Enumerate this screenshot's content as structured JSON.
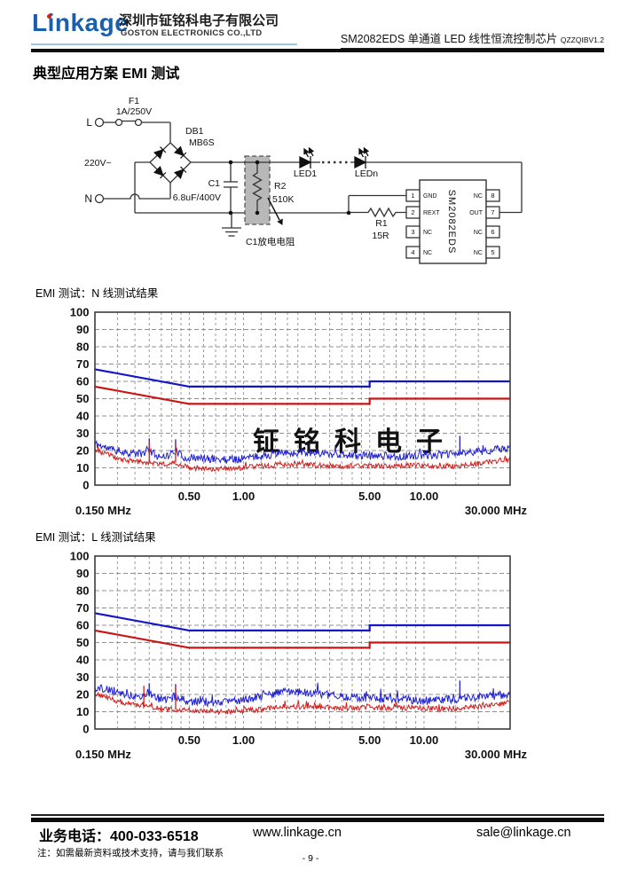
{
  "header": {
    "logo": "Linkage",
    "company_cn": "深圳市钲铭科电子有限公司",
    "company_en": "GOSTON ELECTRONICS CO.,LTD",
    "doc_title": "SM2082EDS 单通道 LED 线性恒流控制芯片",
    "doc_version": "QZZQIBV1.2"
  },
  "section_title": "典型应用方案 EMI 测试",
  "circuit": {
    "labels": {
      "live": "L",
      "neutral": "N",
      "mains": "220V~",
      "fuse_ref": "F1",
      "fuse_val": "1A/250V",
      "bridge_ref": "DB1",
      "bridge_val": "MB6S",
      "cap_ref": "C1",
      "cap_val": "6.8uF/400V",
      "r2_ref": "R2",
      "r2_val": "510K",
      "r2_note": "C1放电电阻",
      "led1": "LED1",
      "ledn": "LEDn",
      "r1_ref": "R1",
      "r1_val": "15R"
    },
    "chip": {
      "name": "SM2082EDS",
      "left_pins": [
        {
          "num": "1",
          "label": "GND"
        },
        {
          "num": "2",
          "label": "REXT"
        },
        {
          "num": "3",
          "label": "NC"
        },
        {
          "num": "4",
          "label": "NC"
        }
      ],
      "right_pins": [
        {
          "num": "8",
          "label": "NC"
        },
        {
          "num": "7",
          "label": "OUT"
        },
        {
          "num": "6",
          "label": "NC"
        },
        {
          "num": "5",
          "label": "NC"
        }
      ]
    }
  },
  "chart_data": [
    {
      "type": "line",
      "title": "EMI 测试：N 线测试结果",
      "x_scale": "log",
      "xlim": [
        0.15,
        30
      ],
      "ylim": [
        0,
        100
      ],
      "grid": true,
      "watermark": "钲铭科电子",
      "x_corner_left": "0.150 MHz",
      "x_corner_right": "30.000 MHz",
      "y_tick_labels": [
        "0",
        "10",
        "20",
        "30",
        "40",
        "50",
        "60",
        "70",
        "80",
        "90",
        "100"
      ],
      "x_ticks": [
        {
          "f": 0.5,
          "label": "0.50"
        },
        {
          "f": 1,
          "label": "1.00"
        },
        {
          "f": 5,
          "label": "5.00"
        },
        {
          "f": 10,
          "label": "10.00"
        }
      ],
      "grid_freqs": [
        0.2,
        0.25,
        0.3,
        0.35,
        0.4,
        0.45,
        0.5,
        0.6,
        0.7,
        0.8,
        0.9,
        1,
        1.25,
        1.5,
        1.75,
        2,
        2.5,
        3,
        3.5,
        4,
        4.5,
        5,
        6,
        7,
        8,
        9,
        10,
        15,
        20
      ],
      "series": [
        {
          "id": "limit-qp-blue",
          "kind": "limit",
          "color": "#1414c8",
          "width": 2.2,
          "points": [
            [
              0.15,
              67
            ],
            [
              0.5,
              57
            ],
            [
              5,
              57
            ],
            [
              5,
              60
            ],
            [
              30,
              60
            ]
          ]
        },
        {
          "id": "limit-av-red",
          "kind": "limit",
          "color": "#cc1414",
          "width": 2.2,
          "points": [
            [
              0.15,
              57
            ],
            [
              0.5,
              47
            ],
            [
              5,
              47
            ],
            [
              5,
              50
            ],
            [
              30,
              50
            ]
          ]
        },
        {
          "id": "trace-qp-blue",
          "kind": "noise",
          "color": "#1f1fd0",
          "amp": 2.3,
          "seed": 11,
          "points": [
            [
              0.15,
              24
            ],
            [
              0.18,
              21
            ],
            [
              0.22,
              19
            ],
            [
              0.27,
              18
            ],
            [
              0.3,
              20
            ],
            [
              0.33,
              17
            ],
            [
              0.38,
              17
            ],
            [
              0.42,
              20
            ],
            [
              0.46,
              16
            ],
            [
              0.55,
              15.5
            ],
            [
              0.7,
              15
            ],
            [
              0.9,
              15
            ],
            [
              1.1,
              16
            ],
            [
              1.4,
              17.5
            ],
            [
              1.8,
              18.5
            ],
            [
              2.3,
              19
            ],
            [
              2.8,
              18.5
            ],
            [
              3.5,
              17.5
            ],
            [
              4.5,
              17
            ],
            [
              6,
              17
            ],
            [
              8,
              16.5
            ],
            [
              10,
              17.5
            ],
            [
              13,
              17.5
            ],
            [
              16,
              18.5
            ],
            [
              20,
              19.5
            ],
            [
              25,
              20.5
            ],
            [
              30,
              21
            ]
          ],
          "spikes": [
            [
              0.3,
              27
            ],
            [
              0.42,
              26.5
            ],
            [
              15.8,
              28.5
            ]
          ]
        },
        {
          "id": "trace-av-red",
          "kind": "noise",
          "color": "#d01f1f",
          "amp": 1.5,
          "seed": 23,
          "points": [
            [
              0.15,
              20
            ],
            [
              0.17,
              18.5
            ],
            [
              0.2,
              15.5
            ],
            [
              0.25,
              13.5
            ],
            [
              0.3,
              13
            ],
            [
              0.36,
              12
            ],
            [
              0.42,
              13
            ],
            [
              0.5,
              10
            ],
            [
              0.65,
              9.5
            ],
            [
              0.85,
              9.5
            ],
            [
              1.1,
              10.5
            ],
            [
              1.5,
              11.5
            ],
            [
              2,
              12
            ],
            [
              2.6,
              11.5
            ],
            [
              3.5,
              11
            ],
            [
              5,
              11
            ],
            [
              7,
              11
            ],
            [
              9,
              11.5
            ],
            [
              12,
              11
            ],
            [
              15,
              11
            ],
            [
              19,
              12
            ],
            [
              24,
              13.5
            ],
            [
              30,
              15
            ]
          ],
          "spikes": [
            [
              0.3,
              25
            ],
            [
              0.42,
              24.5
            ]
          ]
        }
      ]
    },
    {
      "type": "line",
      "title": "EMI 测试：L 线测试结果",
      "x_scale": "log",
      "xlim": [
        0.15,
        30
      ],
      "ylim": [
        0,
        100
      ],
      "grid": true,
      "watermark": "",
      "x_corner_left": "0.150 MHz",
      "x_corner_right": "30.000 MHz",
      "y_tick_labels": [
        "0",
        "10",
        "20",
        "30",
        "40",
        "50",
        "60",
        "70",
        "80",
        "90",
        "100"
      ],
      "x_ticks": [
        {
          "f": 0.5,
          "label": "0.50"
        },
        {
          "f": 1,
          "label": "1.00"
        },
        {
          "f": 5,
          "label": "5.00"
        },
        {
          "f": 10,
          "label": "10.00"
        }
      ],
      "grid_freqs": [
        0.2,
        0.25,
        0.3,
        0.35,
        0.4,
        0.45,
        0.5,
        0.6,
        0.7,
        0.8,
        0.9,
        1,
        1.25,
        1.5,
        1.75,
        2,
        2.5,
        3,
        3.5,
        4,
        4.5,
        5,
        6,
        7,
        8,
        9,
        10,
        15,
        20
      ],
      "series": [
        {
          "id": "limit-qp-blue",
          "kind": "limit",
          "color": "#1414c8",
          "width": 2.2,
          "points": [
            [
              0.15,
              67
            ],
            [
              0.5,
              57
            ],
            [
              5,
              57
            ],
            [
              5,
              60
            ],
            [
              30,
              60
            ]
          ]
        },
        {
          "id": "limit-av-red",
          "kind": "limit",
          "color": "#cc1414",
          "width": 2.2,
          "points": [
            [
              0.15,
              57
            ],
            [
              0.5,
              47
            ],
            [
              5,
              47
            ],
            [
              5,
              50
            ],
            [
              30,
              50
            ]
          ]
        },
        {
          "id": "trace-qp-blue",
          "kind": "noise",
          "color": "#1f1fd0",
          "amp": 2.4,
          "seed": 37,
          "points": [
            [
              0.15,
              24
            ],
            [
              0.19,
              22
            ],
            [
              0.24,
              19
            ],
            [
              0.3,
              20
            ],
            [
              0.36,
              16.5
            ],
            [
              0.42,
              19
            ],
            [
              0.5,
              16
            ],
            [
              0.65,
              15.5
            ],
            [
              0.85,
              15.5
            ],
            [
              1.05,
              17
            ],
            [
              1.3,
              19.5
            ],
            [
              1.6,
              21
            ],
            [
              2,
              21.5
            ],
            [
              2.5,
              21
            ],
            [
              3,
              19.5
            ],
            [
              3.8,
              18.5
            ],
            [
              5,
              17.5
            ],
            [
              6.5,
              17.5
            ],
            [
              8,
              17
            ],
            [
              10,
              16.5
            ],
            [
              12.5,
              17
            ],
            [
              15,
              17.5
            ],
            [
              18,
              18
            ],
            [
              22,
              19
            ],
            [
              26,
              19.5
            ],
            [
              30,
              20
            ]
          ],
          "spikes": [
            [
              0.3,
              26.5
            ],
            [
              0.42,
              26
            ],
            [
              15.8,
              28
            ]
          ]
        },
        {
          "id": "trace-av-red",
          "kind": "noise",
          "color": "#d01f1f",
          "amp": 1.5,
          "seed": 51,
          "points": [
            [
              0.15,
              20
            ],
            [
              0.17,
              19
            ],
            [
              0.2,
              16
            ],
            [
              0.25,
              14
            ],
            [
              0.3,
              13
            ],
            [
              0.36,
              11.5
            ],
            [
              0.45,
              11
            ],
            [
              0.55,
              10.5
            ],
            [
              0.75,
              10
            ],
            [
              1,
              10.5
            ],
            [
              1.3,
              11.5
            ],
            [
              1.7,
              13
            ],
            [
              2.2,
              13
            ],
            [
              2.8,
              12.5
            ],
            [
              3.6,
              12
            ],
            [
              5,
              12.5
            ],
            [
              6.5,
              12
            ],
            [
              8,
              12
            ],
            [
              10,
              12
            ],
            [
              13,
              11.5
            ],
            [
              16,
              12
            ],
            [
              20,
              13
            ],
            [
              25,
              14
            ],
            [
              30,
              15.5
            ]
          ],
          "spikes": [
            [
              0.28,
              25
            ],
            [
              0.42,
              25
            ]
          ]
        }
      ]
    }
  ],
  "footer": {
    "phone": "业务电话：400-033-6518",
    "website": "www.linkage.cn",
    "email": "sale@linkage.cn",
    "note": "注：如需最新资料或技术支持，请与我们联系",
    "page_number": "- 9 -"
  }
}
